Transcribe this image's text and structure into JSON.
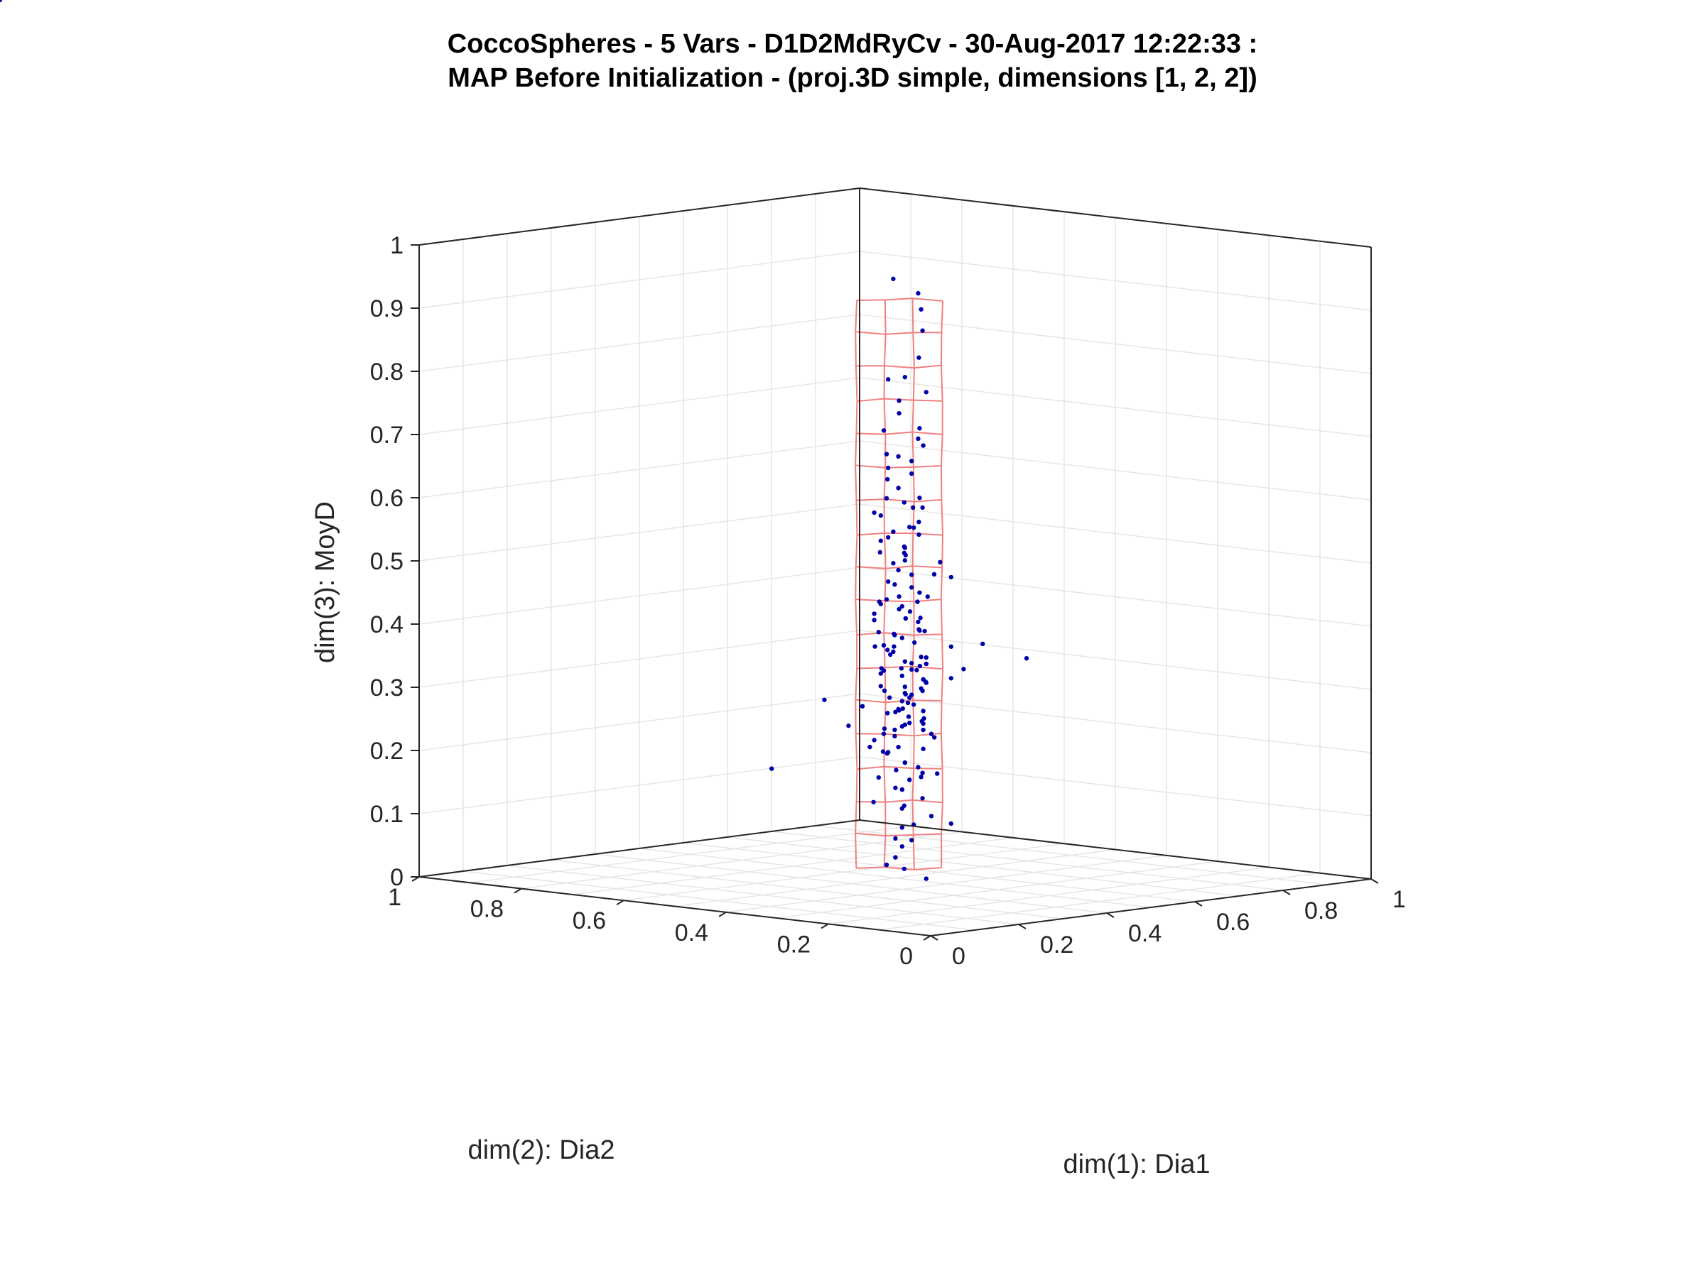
{
  "chart_data": {
    "type": "scatter",
    "title_line1": "CoccoSpheres - 5 Vars - D1D2MdRyCv - 30-Aug-2017 12:22:33 :",
    "title_line2": "MAP Before Initialization - (proj.3D simple, dimensions [1, 2, 2])",
    "xlabel": "dim(1): Dia1",
    "ylabel": "dim(2): Dia2",
    "zlabel": "dim(3): MoyD",
    "xlim": [
      0,
      1
    ],
    "ylim": [
      0,
      1
    ],
    "zlim": [
      0,
      1
    ],
    "x_ticks": [
      "0",
      "0.2",
      "0.4",
      "0.6",
      "0.8",
      "1"
    ],
    "y_ticks": [
      "0",
      "0.2",
      "0.4",
      "0.6",
      "0.8",
      "1"
    ],
    "z_ticks": [
      "0",
      "0.1",
      "0.2",
      "0.3",
      "0.4",
      "0.5",
      "0.6",
      "0.7",
      "0.8",
      "0.9",
      "1"
    ],
    "grid": true,
    "view": "3D, azimuth -45, elevation 30",
    "colors": {
      "points": "#0000a8",
      "map_grid": "#f08080",
      "box": "#262626",
      "grid": "#e6e6e6"
    },
    "series": [
      {
        "marker": "point",
        "x": [
          0.31,
          0.29,
          0.33,
          0.35,
          0.28,
          0.3,
          0.32,
          0.34,
          0.27,
          0.36,
          0.31,
          0.29,
          0.33,
          0.3,
          0.32,
          0.28,
          0.35,
          0.31,
          0.29,
          0.34,
          0.3,
          0.33,
          0.26,
          0.37,
          0.31,
          0.29,
          0.32,
          0.3,
          0.34,
          0.28,
          0.36,
          0.31,
          0.3,
          0.33,
          0.29,
          0.32,
          0.27,
          0.35,
          0.31,
          0.3,
          0.38,
          0.24,
          0.31,
          0.29,
          0.33,
          0.3,
          0.32,
          0.28,
          0.35,
          0.31,
          0.29,
          0.34,
          0.3,
          0.33,
          0.26,
          0.37,
          0.31,
          0.29,
          0.32,
          0.3,
          0.34,
          0.28,
          0.36,
          0.31,
          0.3,
          0.33,
          0.29,
          0.32,
          0.27,
          0.35,
          0.22,
          0.4,
          0.31,
          0.29,
          0.33,
          0.3,
          0.32,
          0.28,
          0.35,
          0.31,
          0.29,
          0.34,
          0.3,
          0.33,
          0.26,
          0.37,
          0.31,
          0.29,
          0.32,
          0.3,
          0.34,
          0.28,
          0.36,
          0.31,
          0.3,
          0.33,
          0.29,
          0.32,
          0.27,
          0.35,
          0.2,
          0.42,
          0.31,
          0.29,
          0.33,
          0.3,
          0.32,
          0.28,
          0.35,
          0.31,
          0.29,
          0.34,
          0.3,
          0.33,
          0.26,
          0.37,
          0.31,
          0.29,
          0.32,
          0.3,
          0.34,
          0.28,
          0.36,
          0.31,
          0.3,
          0.33,
          0.29,
          0.32,
          0.27,
          0.35,
          0.18,
          0.44,
          0.31,
          0.29,
          0.33,
          0.3,
          0.32,
          0.28,
          0.35,
          0.31,
          0.29,
          0.34,
          0.3,
          0.33,
          0.26,
          0.37,
          0.31,
          0.29,
          0.32,
          0.3,
          0.34,
          0.28,
          0.36,
          0.31,
          0.3,
          0.33,
          0.29,
          0.32,
          0.27,
          0.35,
          0.31,
          0.3,
          0.45,
          0.15,
          0.31,
          0.3,
          0.33,
          0.28,
          0.32,
          0.29,
          0.34,
          0.31,
          0.3,
          0.33
        ],
        "y": [
          0.33,
          0.3,
          0.34,
          0.31,
          0.36,
          0.29,
          0.32,
          0.35,
          0.3,
          0.33,
          0.28,
          0.34,
          0.31,
          0.36,
          0.29,
          0.32,
          0.3,
          0.35,
          0.33,
          0.31,
          0.27,
          0.34,
          0.32,
          0.3,
          0.36,
          0.29,
          0.33,
          0.31,
          0.28,
          0.35,
          0.32,
          0.3,
          0.37,
          0.29,
          0.34,
          0.31,
          0.33,
          0.3,
          0.26,
          0.36,
          0.32,
          0.34,
          0.33,
          0.3,
          0.34,
          0.31,
          0.36,
          0.29,
          0.32,
          0.35,
          0.3,
          0.33,
          0.28,
          0.34,
          0.31,
          0.36,
          0.29,
          0.32,
          0.3,
          0.35,
          0.33,
          0.31,
          0.27,
          0.34,
          0.32,
          0.3,
          0.36,
          0.29,
          0.33,
          0.31,
          0.35,
          0.28,
          0.33,
          0.3,
          0.34,
          0.31,
          0.36,
          0.29,
          0.32,
          0.35,
          0.3,
          0.33,
          0.28,
          0.34,
          0.31,
          0.36,
          0.29,
          0.32,
          0.3,
          0.35,
          0.33,
          0.31,
          0.27,
          0.34,
          0.32,
          0.3,
          0.36,
          0.29,
          0.33,
          0.31,
          0.38,
          0.26,
          0.33,
          0.3,
          0.34,
          0.31,
          0.36,
          0.29,
          0.32,
          0.35,
          0.3,
          0.33,
          0.28,
          0.34,
          0.31,
          0.36,
          0.29,
          0.32,
          0.3,
          0.35,
          0.33,
          0.31,
          0.27,
          0.34,
          0.32,
          0.3,
          0.36,
          0.29,
          0.33,
          0.31,
          0.24,
          0.4,
          0.33,
          0.3,
          0.34,
          0.31,
          0.36,
          0.29,
          0.32,
          0.35,
          0.3,
          0.33,
          0.28,
          0.34,
          0.31,
          0.36,
          0.29,
          0.32,
          0.3,
          0.35,
          0.33,
          0.31,
          0.27,
          0.34,
          0.32,
          0.3,
          0.36,
          0.29,
          0.33,
          0.31,
          0.3,
          0.32,
          0.2,
          0.44,
          0.31,
          0.33,
          0.3,
          0.34,
          0.29,
          0.35,
          0.32,
          0.3,
          0.33,
          0.31
        ],
        "z": [
          0.3,
          0.34,
          0.27,
          0.38,
          0.24,
          0.41,
          0.31,
          0.36,
          0.21,
          0.44,
          0.29,
          0.33,
          0.47,
          0.19,
          0.35,
          0.39,
          0.26,
          0.5,
          0.32,
          0.28,
          0.43,
          0.17,
          0.37,
          0.53,
          0.23,
          0.46,
          0.3,
          0.56,
          0.2,
          0.4,
          0.34,
          0.59,
          0.15,
          0.48,
          0.27,
          0.62,
          0.36,
          0.13,
          0.52,
          0.42,
          0.25,
          0.31,
          0.65,
          0.33,
          0.11,
          0.55,
          0.29,
          0.45,
          0.38,
          0.68,
          0.22,
          0.09,
          0.49,
          0.35,
          0.71,
          0.18,
          0.58,
          0.26,
          0.44,
          0.74,
          0.32,
          0.07,
          0.51,
          0.39,
          0.77,
          0.16,
          0.61,
          0.28,
          0.47,
          0.8,
          0.28,
          0.36,
          0.24,
          0.54,
          0.41,
          0.05,
          0.66,
          0.33,
          0.19,
          0.57,
          0.83,
          0.37,
          0.43,
          0.14,
          0.64,
          0.27,
          0.86,
          0.5,
          0.21,
          0.4,
          0.69,
          0.3,
          0.12,
          0.58,
          0.46,
          0.9,
          0.25,
          0.72,
          0.34,
          0.03,
          0.32,
          0.4,
          0.52,
          0.38,
          0.08,
          0.63,
          0.29,
          0.45,
          0.93,
          0.23,
          0.56,
          0.36,
          0.75,
          0.17,
          0.48,
          0.31,
          0.6,
          0.42,
          0.96,
          0.26,
          0.67,
          0.1,
          0.35,
          0.53,
          0.79,
          0.2,
          0.44,
          0.3,
          0.61,
          0.37,
          0.25,
          0.35,
          0.7,
          0.28,
          0.46,
          0.15,
          0.39,
          0.55,
          0.33,
          0.82,
          0.22,
          0.49,
          0.64,
          0.31,
          0.06,
          0.58,
          0.43,
          0.27,
          0.73,
          0.36,
          0.51,
          0.18,
          0.4,
          0.98,
          0.3,
          0.62,
          0.45,
          0.24,
          0.57,
          0.34,
          0.12,
          0.48,
          0.38,
          0.21,
          0.29,
          0.42,
          0.33,
          0.55,
          0.27,
          0.47,
          0.36,
          0.31,
          0.4
        ]
      }
    ]
  }
}
